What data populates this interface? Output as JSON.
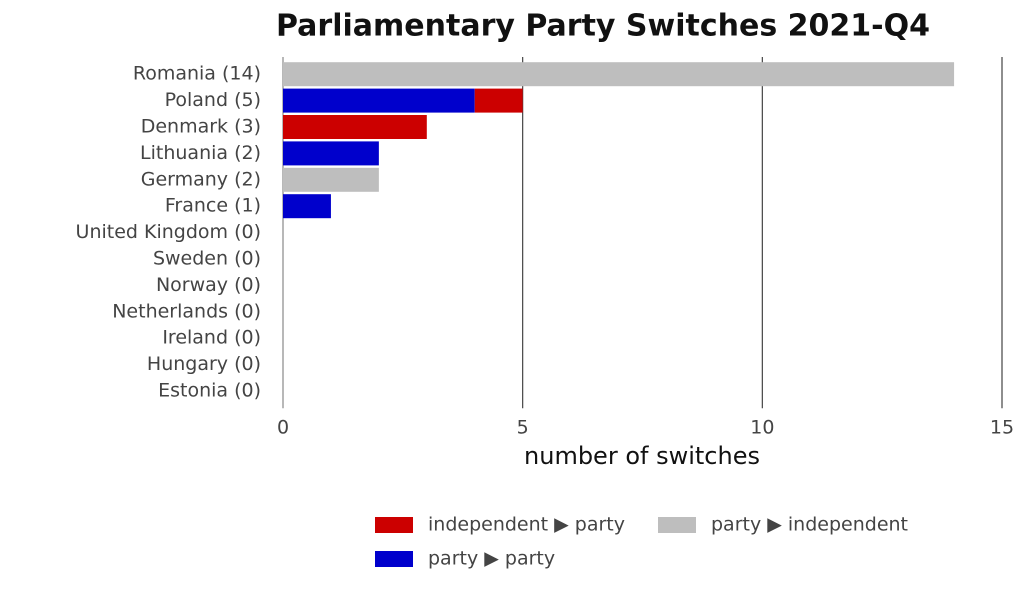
{
  "chart_data": {
    "type": "stacked_barh",
    "title": "Parliamentary Party Switches 2021-Q4",
    "xlabel": "number of switches",
    "categories": [
      "Romania (14)",
      "Poland (5)",
      "Denmark (3)",
      "Lithuania (2)",
      "Germany (2)",
      "France (1)",
      "United Kingdom (0)",
      "Sweden (0)",
      "Norway (0)",
      "Netherlands (0)",
      "Ireland (0)",
      "Hungary (0)",
      "Estonia (0)"
    ],
    "series": [
      {
        "name": "independent ▶ party",
        "color": "#cc0000",
        "values": [
          0,
          1,
          3,
          0,
          0,
          0,
          0,
          0,
          0,
          0,
          0,
          0,
          0
        ]
      },
      {
        "name": "party ▶ independent",
        "color": "#bebebe",
        "values": [
          14,
          0,
          0,
          0,
          2,
          0,
          0,
          0,
          0,
          0,
          0,
          0,
          0
        ]
      },
      {
        "name": "party ▶ party",
        "color": "#0000cc",
        "values": [
          0,
          4,
          0,
          2,
          0,
          1,
          0,
          0,
          0,
          0,
          0,
          0,
          0
        ]
      }
    ],
    "xlim": [
      0,
      15
    ],
    "xticks": [
      0,
      5,
      10,
      15
    ],
    "grid": true
  }
}
